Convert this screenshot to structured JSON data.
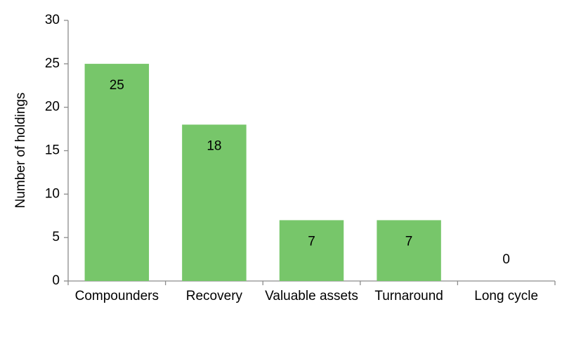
{
  "chart_data": {
    "type": "bar",
    "y_label": "Number of holdings",
    "categories": [
      "Compounders",
      "Recovery",
      "Valuable assets",
      "Turnaround",
      "Long cycle"
    ],
    "values": [
      25,
      18,
      7,
      7,
      0
    ],
    "color": "#77c66a",
    "ylim": [
      0,
      30
    ],
    "yticks": [
      0,
      5,
      10,
      15,
      20,
      25,
      30
    ],
    "grid": false
  }
}
